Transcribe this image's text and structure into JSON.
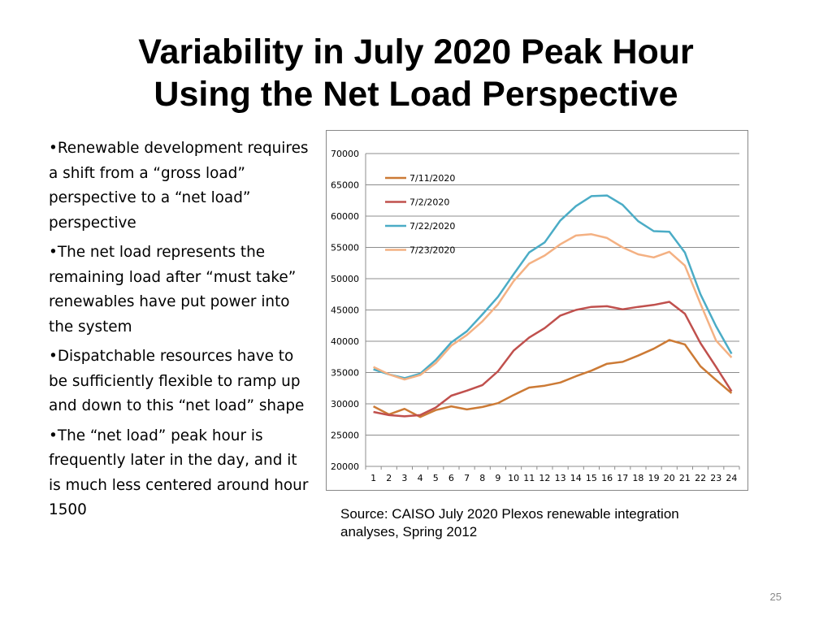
{
  "slide": {
    "title_line1": "Variability in July 2020 Peak Hour",
    "title_line2": "Using the Net Load Perspective",
    "bullets": [
      "•Renewable development requires a shift from a “gross load” perspective to a “net load” perspective",
      "•The net load represents the remaining load after “must take” renewables have put power into the system",
      "•Dispatchable resources have to be sufficiently flexible to ramp up and down to this “net load” shape",
      "•The “net load” peak hour is frequently later in the day, and it is much less centered around hour 1500"
    ],
    "source": "Source: CAISO July 2020 Plexos renewable integration analyses, Spring 2012",
    "page_number": "25"
  },
  "chart_data": {
    "type": "line",
    "title": "",
    "xlabel": "",
    "ylabel": "",
    "categories": [
      "1",
      "2",
      "3",
      "4",
      "5",
      "6",
      "7",
      "8",
      "9",
      "10",
      "11",
      "12",
      "13",
      "14",
      "15",
      "16",
      "17",
      "18",
      "19",
      "20",
      "21",
      "22",
      "23",
      "24"
    ],
    "ylim": [
      20000,
      70000
    ],
    "yticks": [
      20000,
      25000,
      30000,
      35000,
      40000,
      45000,
      50000,
      55000,
      60000,
      65000,
      70000
    ],
    "grid": true,
    "legend_position": "top-left",
    "series": [
      {
        "name": "7/11/2020",
        "color": "#cc7a35",
        "values": [
          29600,
          28300,
          29200,
          27900,
          29000,
          29600,
          29100,
          29500,
          30100,
          31400,
          32600,
          32900,
          33400,
          34400,
          35300,
          36400,
          36700,
          37700,
          38800,
          40200,
          39500,
          36000,
          33800,
          31700
        ]
      },
      {
        "name": "7/2/2020",
        "color": "#c0504d",
        "values": [
          28700,
          28200,
          28000,
          28200,
          29400,
          31300,
          32100,
          33000,
          35200,
          38500,
          40600,
          42100,
          44100,
          45000,
          45500,
          45600,
          45100,
          45500,
          45800,
          46300,
          44400,
          39700,
          35900,
          32000
        ]
      },
      {
        "name": "7/22/2020",
        "color": "#4bacc6",
        "values": [
          35500,
          34700,
          34100,
          34800,
          37000,
          39800,
          41600,
          44300,
          47100,
          50700,
          54200,
          55800,
          59300,
          61600,
          63200,
          63300,
          61800,
          59200,
          57600,
          57500,
          54200,
          47500,
          42400,
          38000
        ]
      },
      {
        "name": "7/23/2020",
        "color": "#f4b183",
        "values": [
          35900,
          34700,
          33900,
          34600,
          36500,
          39300,
          41000,
          43200,
          45900,
          49600,
          52400,
          53700,
          55500,
          56900,
          57100,
          56500,
          55000,
          53900,
          53400,
          54300,
          52100,
          46000,
          40100,
          37400
        ]
      }
    ]
  }
}
